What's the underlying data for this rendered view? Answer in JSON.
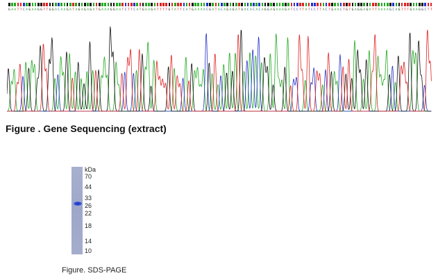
{
  "sequencing": {
    "sequence": "GAATTCAGAAGGTTGGACAAGATAGAGAGATGAAAGGAATCTTCATGAAGATTTTGTATTCATGAAAACGATACAGAGATGACACACAGGAGAAAGATCCTTATCCTTACTGAACTGTGAGGAGATTAAAAGCAGTTTGAAGGCTT",
    "caption": "Figure . Gene Sequencing (extract)",
    "base_colors": {
      "A": "#22aa22",
      "C": "#2233cc",
      "G": "#111111",
      "T": "#dd2222"
    }
  },
  "gel": {
    "unit_label": "kDa",
    "markers": [
      "70",
      "44",
      "33",
      "26",
      "22",
      "18",
      "14",
      "10"
    ],
    "lane_color": "#a3abcb",
    "band_color": "#1530c8",
    "caption": "Figure. SDS-PAGE"
  }
}
